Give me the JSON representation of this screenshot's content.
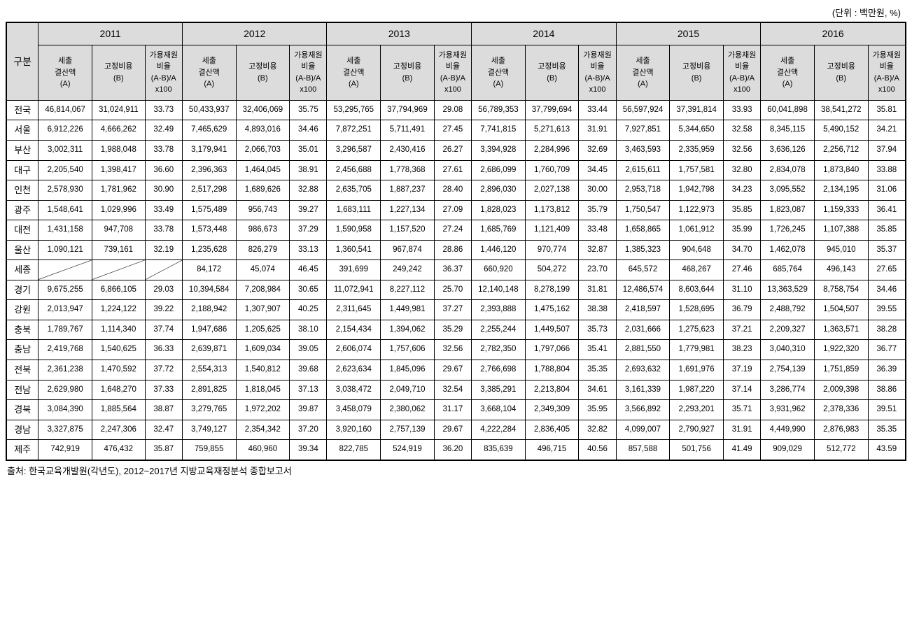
{
  "unit_label": "(단위 : 백만원, %)",
  "header": {
    "gubun": "구분",
    "years": [
      "2011",
      "2012",
      "2013",
      "2014",
      "2015",
      "2016"
    ],
    "sub": {
      "a": "세출\n결산액\n(A)",
      "b": "고정비용\n(B)",
      "c": "가용재원\n비율\n(A-B)/A\nx100"
    }
  },
  "regions": [
    {
      "name": "전국",
      "cells": [
        "46,814,067",
        "31,024,911",
        "33.73",
        "50,433,937",
        "32,406,069",
        "35.75",
        "53,295,765",
        "37,794,969",
        "29.08",
        "56,789,353",
        "37,799,694",
        "33.44",
        "56,597,924",
        "37,391,814",
        "33.93",
        "60,041,898",
        "38,541,272",
        "35.81"
      ]
    },
    {
      "name": "서울",
      "cells": [
        "6,912,226",
        "4,666,262",
        "32.49",
        "7,465,629",
        "4,893,016",
        "34.46",
        "7,872,251",
        "5,711,491",
        "27.45",
        "7,741,815",
        "5,271,613",
        "31.91",
        "7,927,851",
        "5,344,650",
        "32.58",
        "8,345,115",
        "5,490,152",
        "34.21"
      ]
    },
    {
      "name": "부산",
      "cells": [
        "3,002,311",
        "1,988,048",
        "33.78",
        "3,179,941",
        "2,066,703",
        "35.01",
        "3,296,587",
        "2,430,416",
        "26.27",
        "3,394,928",
        "2,284,996",
        "32.69",
        "3,463,593",
        "2,335,959",
        "32.56",
        "3,636,126",
        "2,256,712",
        "37.94"
      ]
    },
    {
      "name": "대구",
      "cells": [
        "2,205,540",
        "1,398,417",
        "36.60",
        "2,396,363",
        "1,464,045",
        "38.91",
        "2,456,688",
        "1,778,368",
        "27.61",
        "2,686,099",
        "1,760,709",
        "34.45",
        "2,615,611",
        "1,757,581",
        "32.80",
        "2,834,078",
        "1,873,840",
        "33.88"
      ]
    },
    {
      "name": "인천",
      "cells": [
        "2,578,930",
        "1,781,962",
        "30.90",
        "2,517,298",
        "1,689,626",
        "32.88",
        "2,635,705",
        "1,887,237",
        "28.40",
        "2,896,030",
        "2,027,138",
        "30.00",
        "2,953,718",
        "1,942,798",
        "34.23",
        "3,095,552",
        "2,134,195",
        "31.06"
      ]
    },
    {
      "name": "광주",
      "cells": [
        "1,548,641",
        "1,029,996",
        "33.49",
        "1,575,489",
        "956,743",
        "39.27",
        "1,683,111",
        "1,227,134",
        "27.09",
        "1,828,023",
        "1,173,812",
        "35.79",
        "1,750,547",
        "1,122,973",
        "35.85",
        "1,823,087",
        "1,159,333",
        "36.41"
      ]
    },
    {
      "name": "대전",
      "cells": [
        "1,431,158",
        "947,708",
        "33.78",
        "1,573,448",
        "986,673",
        "37.29",
        "1,590,958",
        "1,157,520",
        "27.24",
        "1,685,769",
        "1,121,409",
        "33.48",
        "1,658,865",
        "1,061,912",
        "35.99",
        "1,726,245",
        "1,107,388",
        "35.85"
      ]
    },
    {
      "name": "울산",
      "cells": [
        "1,090,121",
        "739,161",
        "32.19",
        "1,235,628",
        "826,279",
        "33.13",
        "1,360,541",
        "967,874",
        "28.86",
        "1,446,120",
        "970,774",
        "32.87",
        "1,385,323",
        "904,648",
        "34.70",
        "1,462,078",
        "945,010",
        "35.37"
      ]
    },
    {
      "name": "세종",
      "diag": [
        0,
        1,
        2
      ],
      "cells": [
        "",
        "",
        "",
        "84,172",
        "45,074",
        "46.45",
        "391,699",
        "249,242",
        "36.37",
        "660,920",
        "504,272",
        "23.70",
        "645,572",
        "468,267",
        "27.46",
        "685,764",
        "496,143",
        "27.65"
      ]
    },
    {
      "name": "경기",
      "cells": [
        "9,675,255",
        "6,866,105",
        "29.03",
        "10,394,584",
        "7,208,984",
        "30.65",
        "11,072,941",
        "8,227,112",
        "25.70",
        "12,140,148",
        "8,278,199",
        "31.81",
        "12,486,574",
        "8,603,644",
        "31.10",
        "13,363,529",
        "8,758,754",
        "34.46"
      ]
    },
    {
      "name": "강원",
      "cells": [
        "2,013,947",
        "1,224,122",
        "39.22",
        "2,188,942",
        "1,307,907",
        "40.25",
        "2,311,645",
        "1,449,981",
        "37.27",
        "2,393,888",
        "1,475,162",
        "38.38",
        "2,418,597",
        "1,528,695",
        "36.79",
        "2,488,792",
        "1,504,507",
        "39.55"
      ]
    },
    {
      "name": "충북",
      "cells": [
        "1,789,767",
        "1,114,340",
        "37.74",
        "1,947,686",
        "1,205,625",
        "38.10",
        "2,154,434",
        "1,394,062",
        "35.29",
        "2,255,244",
        "1,449,507",
        "35.73",
        "2,031,666",
        "1,275,623",
        "37.21",
        "2,209,327",
        "1,363,571",
        "38.28"
      ]
    },
    {
      "name": "충남",
      "cells": [
        "2,419,768",
        "1,540,625",
        "36.33",
        "2,639,871",
        "1,609,034",
        "39.05",
        "2,606,074",
        "1,757,606",
        "32.56",
        "2,782,350",
        "1,797,066",
        "35.41",
        "2,881,550",
        "1,779,981",
        "38.23",
        "3,040,310",
        "1,922,320",
        "36.77"
      ]
    },
    {
      "name": "전북",
      "cells": [
        "2,361,238",
        "1,470,592",
        "37.72",
        "2,554,313",
        "1,540,812",
        "39.68",
        "2,623,634",
        "1,845,096",
        "29.67",
        "2,766,698",
        "1,788,804",
        "35.35",
        "2,693,632",
        "1,691,976",
        "37.19",
        "2,754,139",
        "1,751,859",
        "36.39"
      ]
    },
    {
      "name": "전남",
      "cells": [
        "2,629,980",
        "1,648,270",
        "37.33",
        "2,891,825",
        "1,818,045",
        "37.13",
        "3,038,472",
        "2,049,710",
        "32.54",
        "3,385,291",
        "2,213,804",
        "34.61",
        "3,161,339",
        "1,987,220",
        "37.14",
        "3,286,774",
        "2,009,398",
        "38.86"
      ]
    },
    {
      "name": "경북",
      "cells": [
        "3,084,390",
        "1,885,564",
        "38.87",
        "3,279,765",
        "1,972,202",
        "39.87",
        "3,458,079",
        "2,380,062",
        "31.17",
        "3,668,104",
        "2,349,309",
        "35.95",
        "3,566,892",
        "2,293,201",
        "35.71",
        "3,931,962",
        "2,378,336",
        "39.51"
      ]
    },
    {
      "name": "경남",
      "cells": [
        "3,327,875",
        "2,247,306",
        "32.47",
        "3,749,127",
        "2,354,342",
        "37.20",
        "3,920,160",
        "2,757,139",
        "29.67",
        "4,222,284",
        "2,836,405",
        "32.82",
        "4,099,007",
        "2,790,927",
        "31.91",
        "4,449,990",
        "2,876,983",
        "35.35"
      ]
    },
    {
      "name": "제주",
      "cells": [
        "742,919",
        "476,432",
        "35.87",
        "759,855",
        "460,960",
        "39.34",
        "822,785",
        "524,919",
        "36.20",
        "835,639",
        "496,715",
        "40.56",
        "857,588",
        "501,756",
        "41.49",
        "909,029",
        "512,772",
        "43.59"
      ]
    }
  ],
  "source": "출처: 한국교육개발원(각년도), 2012~2017년 지방교육재정분석 종합보고서",
  "style": {
    "header_bg": "#dcdcdc",
    "border_color": "#000000",
    "body_bg": "#ffffff"
  }
}
